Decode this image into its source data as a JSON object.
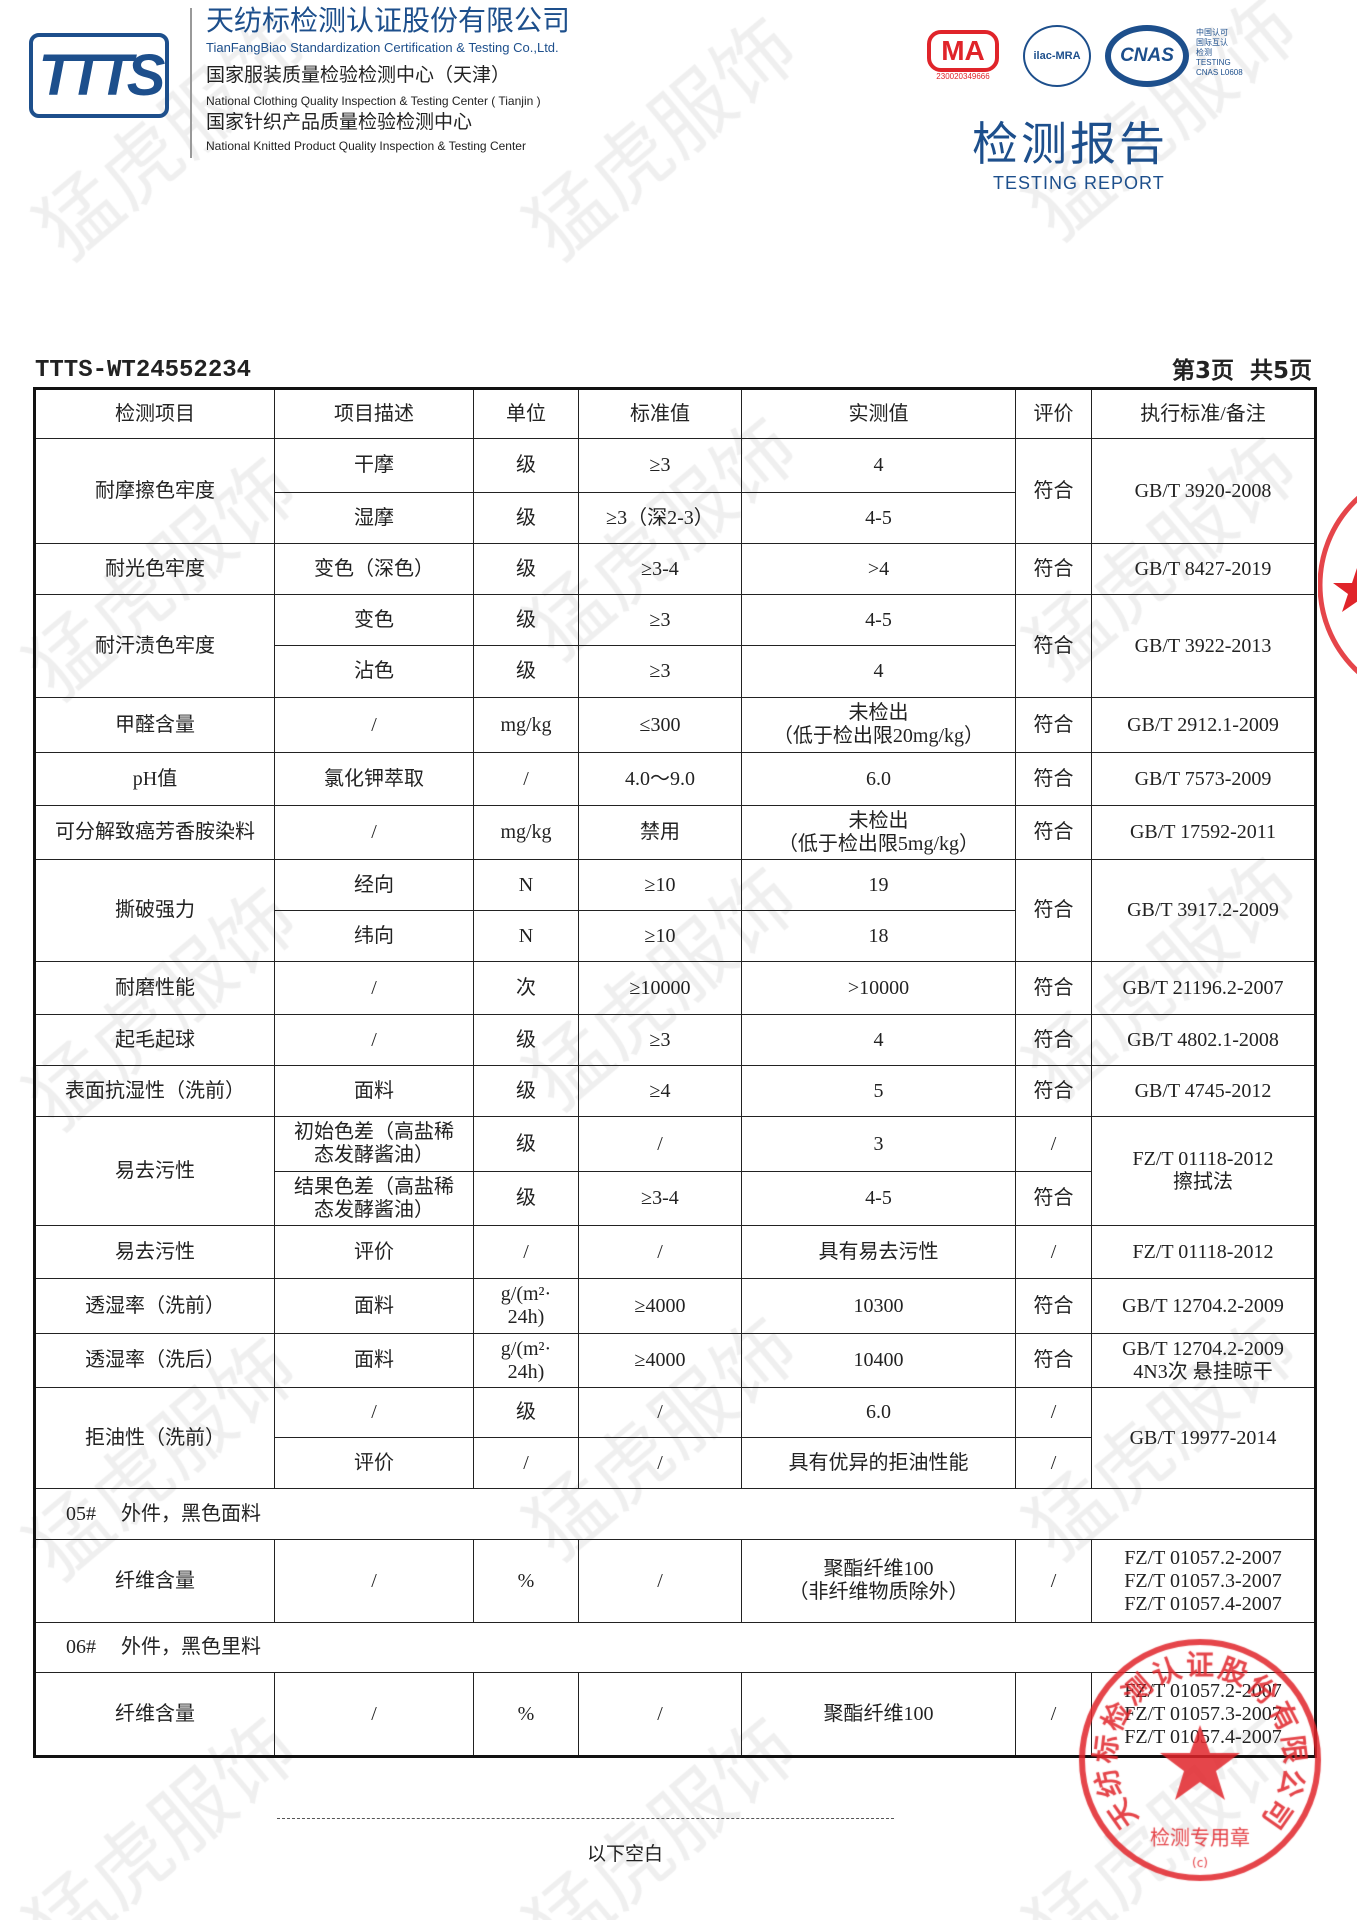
{
  "header": {
    "logo_text": "TTTS",
    "company_cn": "天纺标检测认证股份有限公司",
    "company_en": "TianFangBiao Standardization Certification & Testing Co.,Ltd.",
    "center1_cn": "国家服装质量检验检测中心（天津）",
    "center1_en": "National Clothing Quality Inspection & Testing Center ( Tianjin )",
    "center2_cn": "国家针织产品质量检验检测中心",
    "center2_en": "National Knitted Product Quality Inspection & Testing Center",
    "cma_text": "MA",
    "cma_number": "230020349666",
    "ilac_text": "ilac-MRA",
    "cnas_text": "CNAS",
    "cnas_note": [
      "中国认可",
      "国际互认",
      "检测",
      "TESTING",
      "CNAS L0608"
    ],
    "report_title": "检测报告",
    "report_title_en": "TESTING REPORT"
  },
  "report_no": "TTTS-WT24552234",
  "page_info": "第3页  共5页",
  "watermark": "猛虎服饰",
  "stamp": {
    "text": "天纺标检测认证股份有限公司",
    "label": "检测专用章",
    "mark": "(c)"
  },
  "colors": {
    "brand": "#1d4f8c",
    "stamp": "#e0242a"
  },
  "table": {
    "row_heights": [
      50,
      54,
      51,
      51,
      51,
      52,
      55,
      53,
      54,
      51,
      51,
      53,
      51,
      51,
      55,
      54,
      53,
      55,
      54,
      50,
      51,
      51,
      83,
      50,
      84
    ],
    "rows": [
      [
        {
          "t": "检测项目"
        },
        {
          "t": "项目描述"
        },
        {
          "t": "单位"
        },
        {
          "t": "标准值"
        },
        {
          "t": "实测值"
        },
        {
          "t": "评价"
        },
        {
          "t": "执行标准/备注"
        }
      ],
      [
        {
          "t": "耐摩擦色牢度",
          "rs": 2
        },
        {
          "t": "干摩"
        },
        {
          "t": "级"
        },
        {
          "t": "≥3"
        },
        {
          "t": "4"
        },
        {
          "t": "符合",
          "rs": 2
        },
        {
          "t": "GB/T 3920-2008",
          "rs": 2
        }
      ],
      [
        {
          "t": "湿摩"
        },
        {
          "t": "级"
        },
        {
          "t": "≥3（深2-3）"
        },
        {
          "t": "4-5"
        }
      ],
      [
        {
          "t": "耐光色牢度"
        },
        {
          "t": "变色（深色）"
        },
        {
          "t": "级"
        },
        {
          "t": "≥3-4"
        },
        {
          "t": ">4"
        },
        {
          "t": "符合"
        },
        {
          "t": "GB/T 8427-2019"
        }
      ],
      [
        {
          "t": "耐汗渍色牢度",
          "rs": 2
        },
        {
          "t": "变色"
        },
        {
          "t": "级"
        },
        {
          "t": "≥3"
        },
        {
          "t": "4-5"
        },
        {
          "t": "符合",
          "rs": 2
        },
        {
          "t": "GB/T 3922-2013",
          "rs": 2
        }
      ],
      [
        {
          "t": "沾色"
        },
        {
          "t": "级"
        },
        {
          "t": "≥3"
        },
        {
          "t": "4"
        }
      ],
      [
        {
          "t": "甲醛含量"
        },
        {
          "t": "/"
        },
        {
          "t": "mg/kg"
        },
        {
          "t": "≤300"
        },
        {
          "t": "未检出\n（低于检出限20mg/kg）"
        },
        {
          "t": "符合"
        },
        {
          "t": "GB/T 2912.1-2009"
        }
      ],
      [
        {
          "t": "pH值"
        },
        {
          "t": "氯化钾萃取"
        },
        {
          "t": "/"
        },
        {
          "t": "4.0～9.0"
        },
        {
          "t": "6.0"
        },
        {
          "t": "符合"
        },
        {
          "t": "GB/T 7573-2009"
        }
      ],
      [
        {
          "t": "可分解致癌芳香胺染料"
        },
        {
          "t": "/"
        },
        {
          "t": "mg/kg"
        },
        {
          "t": "禁用"
        },
        {
          "t": "未检出\n（低于检出限5mg/kg）"
        },
        {
          "t": "符合"
        },
        {
          "t": "GB/T 17592-2011"
        }
      ],
      [
        {
          "t": "撕破强力",
          "rs": 2
        },
        {
          "t": "经向"
        },
        {
          "t": "N"
        },
        {
          "t": "≥10"
        },
        {
          "t": "19"
        },
        {
          "t": "符合",
          "rs": 2
        },
        {
          "t": "GB/T 3917.2-2009",
          "rs": 2
        }
      ],
      [
        {
          "t": "纬向"
        },
        {
          "t": "N"
        },
        {
          "t": "≥10"
        },
        {
          "t": "18"
        }
      ],
      [
        {
          "t": "耐磨性能"
        },
        {
          "t": "/"
        },
        {
          "t": "次"
        },
        {
          "t": "≥10000"
        },
        {
          "t": ">10000"
        },
        {
          "t": "符合"
        },
        {
          "t": "GB/T 21196.2-2007"
        }
      ],
      [
        {
          "t": "起毛起球"
        },
        {
          "t": "/"
        },
        {
          "t": "级"
        },
        {
          "t": "≥3"
        },
        {
          "t": "4"
        },
        {
          "t": "符合"
        },
        {
          "t": "GB/T 4802.1-2008"
        }
      ],
      [
        {
          "t": "表面抗湿性（洗前）"
        },
        {
          "t": "面料"
        },
        {
          "t": "级"
        },
        {
          "t": "≥4"
        },
        {
          "t": "5"
        },
        {
          "t": "符合"
        },
        {
          "t": "GB/T 4745-2012"
        }
      ],
      [
        {
          "t": "易去污性",
          "rs": 2
        },
        {
          "t": "初始色差（高盐稀\n态发酵酱油）"
        },
        {
          "t": "级"
        },
        {
          "t": "/"
        },
        {
          "t": "3"
        },
        {
          "t": "/"
        },
        {
          "t": "FZ/T 01118-2012\n擦拭法",
          "rs": 2
        }
      ],
      [
        {
          "t": "结果色差（高盐稀\n态发酵酱油）"
        },
        {
          "t": "级"
        },
        {
          "t": "≥3-4"
        },
        {
          "t": "4-5"
        },
        {
          "t": "符合"
        }
      ],
      [
        {
          "t": "易去污性"
        },
        {
          "t": "评价"
        },
        {
          "t": "/"
        },
        {
          "t": "/"
        },
        {
          "t": "具有易去污性"
        },
        {
          "t": "/"
        },
        {
          "t": "FZ/T 01118-2012"
        }
      ],
      [
        {
          "t": "透湿率（洗前）"
        },
        {
          "t": "面料"
        },
        {
          "t": "g/(m²·\n24h)"
        },
        {
          "t": "≥4000"
        },
        {
          "t": "10300"
        },
        {
          "t": "符合"
        },
        {
          "t": "GB/T 12704.2-2009"
        }
      ],
      [
        {
          "t": "透湿率（洗后）"
        },
        {
          "t": "面料"
        },
        {
          "t": "g/(m²·\n24h)"
        },
        {
          "t": "≥4000"
        },
        {
          "t": "10400"
        },
        {
          "t": "符合"
        },
        {
          "t": "GB/T 12704.2-2009\n4N3次 悬挂晾干"
        }
      ],
      [
        {
          "t": "拒油性（洗前）",
          "rs": 2
        },
        {
          "t": "/"
        },
        {
          "t": "级"
        },
        {
          "t": "/"
        },
        {
          "t": "6.0"
        },
        {
          "t": "/"
        },
        {
          "t": "GB/T 19977-2014",
          "rs": 2
        }
      ],
      [
        {
          "t": "评价"
        },
        {
          "t": "/"
        },
        {
          "t": "/"
        },
        {
          "t": "具有优异的拒油性能"
        },
        {
          "t": "/"
        }
      ],
      [
        {
          "t": "05#     外件，黑色面料",
          "cs": 7,
          "left": true
        }
      ],
      [
        {
          "t": "纤维含量"
        },
        {
          "t": "/"
        },
        {
          "t": "%"
        },
        {
          "t": "/"
        },
        {
          "t": "聚酯纤维100\n（非纤维物质除外）"
        },
        {
          "t": "/"
        },
        {
          "t": "FZ/T 01057.2-2007\nFZ/T 01057.3-2007\nFZ/T 01057.4-2007"
        }
      ],
      [
        {
          "t": "06#     外件，黑色里料",
          "cs": 7,
          "left": true
        }
      ],
      [
        {
          "t": "纤维含量"
        },
        {
          "t": "/"
        },
        {
          "t": "%"
        },
        {
          "t": "/"
        },
        {
          "t": "聚酯纤维100"
        },
        {
          "t": "/"
        },
        {
          "t": "FZ/T 01057.2-2007\nFZ/T 01057.3-2007\nFZ/T 01057.4-2007"
        }
      ]
    ]
  },
  "footer": {
    "blank_note": "以下空白"
  }
}
